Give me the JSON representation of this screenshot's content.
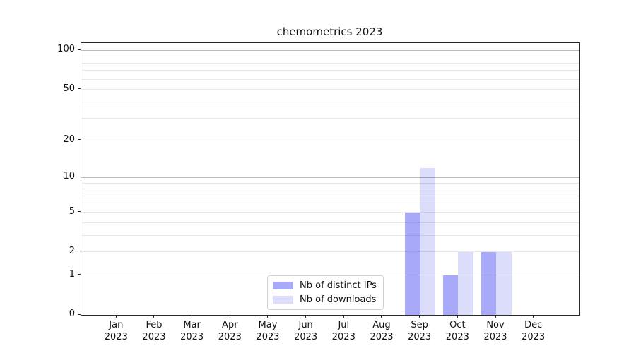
{
  "chart_data": {
    "type": "bar",
    "title": "chemometrics 2023",
    "categories": [
      "Jan",
      "Feb",
      "Mar",
      "Apr",
      "May",
      "Jun",
      "Jul",
      "Aug",
      "Sep",
      "Oct",
      "Nov",
      "Dec"
    ],
    "x_tick_labels": [
      "Jan\n2023",
      "Feb\n2023",
      "Mar\n2023",
      "Apr\n2023",
      "May\n2023",
      "Jun\n2023",
      "Jul\n2023",
      "Aug\n2023",
      "Sep\n2023",
      "Oct\n2023",
      "Nov\n2023",
      "Dec\n2023"
    ],
    "series": [
      {
        "name": "Nb of distinct IPs",
        "color": "#a9a9fa",
        "values": [
          0,
          0,
          0,
          0,
          0,
          0,
          0,
          0,
          5,
          1,
          2,
          0
        ]
      },
      {
        "name": "Nb of downloads",
        "color": "#dcdcfb",
        "values": [
          0,
          0,
          0,
          0,
          0,
          0,
          0,
          0,
          12,
          2,
          2,
          0
        ]
      }
    ],
    "xlabel": "",
    "ylabel": "",
    "scale": "log1p",
    "ylim": [
      0,
      113.6
    ],
    "yticks": [
      0,
      1,
      2,
      5,
      10,
      20,
      50,
      100
    ],
    "major_gridlines": [
      1,
      10,
      100
    ],
    "minor_gridlines": [
      2,
      3,
      4,
      5,
      6,
      7,
      8,
      9,
      20,
      30,
      40,
      50,
      60,
      70,
      80,
      90
    ],
    "grid": true,
    "legend_position": "lower center"
  }
}
